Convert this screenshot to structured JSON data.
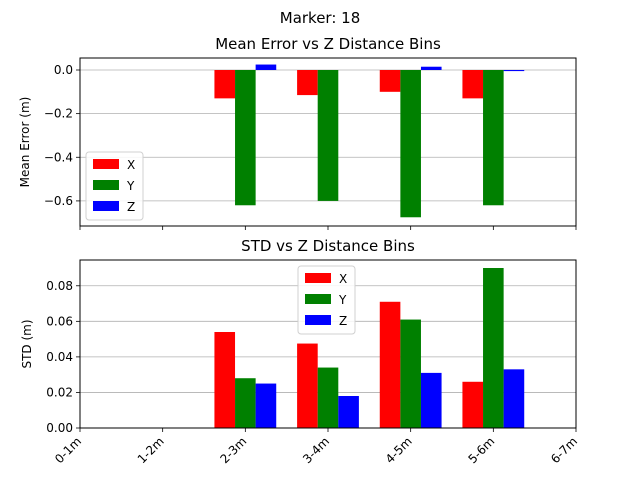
{
  "figure": {
    "suptitle": "Marker: 18"
  },
  "colors": {
    "X": "#ff0000",
    "Y": "#008000",
    "Z": "#0000ff",
    "grid": "#b0b0b0"
  },
  "chart_data": [
    {
      "type": "bar",
      "title": "Mean Error vs Z Distance Bins",
      "ylabel": "Mean Error (m)",
      "xlabel": "",
      "categories": [
        "0-1m",
        "1-2m",
        "2-3m",
        "3-4m",
        "4-5m",
        "5-6m",
        "6-7m"
      ],
      "series": [
        {
          "name": "X",
          "values": [
            null,
            null,
            -0.13,
            -0.115,
            -0.1,
            -0.13,
            null
          ]
        },
        {
          "name": "Y",
          "values": [
            null,
            null,
            -0.62,
            -0.6,
            -0.675,
            -0.62,
            null
          ]
        },
        {
          "name": "Z",
          "values": [
            null,
            null,
            0.025,
            null,
            0.015,
            -0.005,
            null
          ]
        }
      ],
      "ylim": [
        -0.715,
        0.055
      ],
      "yticks": [
        0.0,
        -0.2,
        -0.4,
        -0.6
      ],
      "ytick_labels": [
        "0.0",
        "−0.2",
        "−0.4",
        "−0.6"
      ],
      "grid": "y",
      "legend_position": "lower-left",
      "xtick_labels_shown": false
    },
    {
      "type": "bar",
      "title": "STD vs Z Distance Bins",
      "ylabel": "STD (m)",
      "xlabel": "",
      "categories": [
        "0-1m",
        "1-2m",
        "2-3m",
        "3-4m",
        "4-5m",
        "5-6m",
        "6-7m"
      ],
      "series": [
        {
          "name": "X",
          "values": [
            null,
            null,
            0.054,
            0.0475,
            0.071,
            0.026,
            null
          ]
        },
        {
          "name": "Y",
          "values": [
            null,
            null,
            0.028,
            0.034,
            0.061,
            0.09,
            null
          ]
        },
        {
          "name": "Z",
          "values": [
            null,
            null,
            0.025,
            0.018,
            0.031,
            0.033,
            null
          ]
        }
      ],
      "ylim": [
        0,
        0.0945
      ],
      "yticks": [
        0.0,
        0.02,
        0.04,
        0.06,
        0.08
      ],
      "ytick_labels": [
        "0.00",
        "0.02",
        "0.04",
        "0.06",
        "0.08"
      ],
      "grid": "y",
      "legend_position": "upper-center",
      "xtick_labels_shown": true
    }
  ]
}
